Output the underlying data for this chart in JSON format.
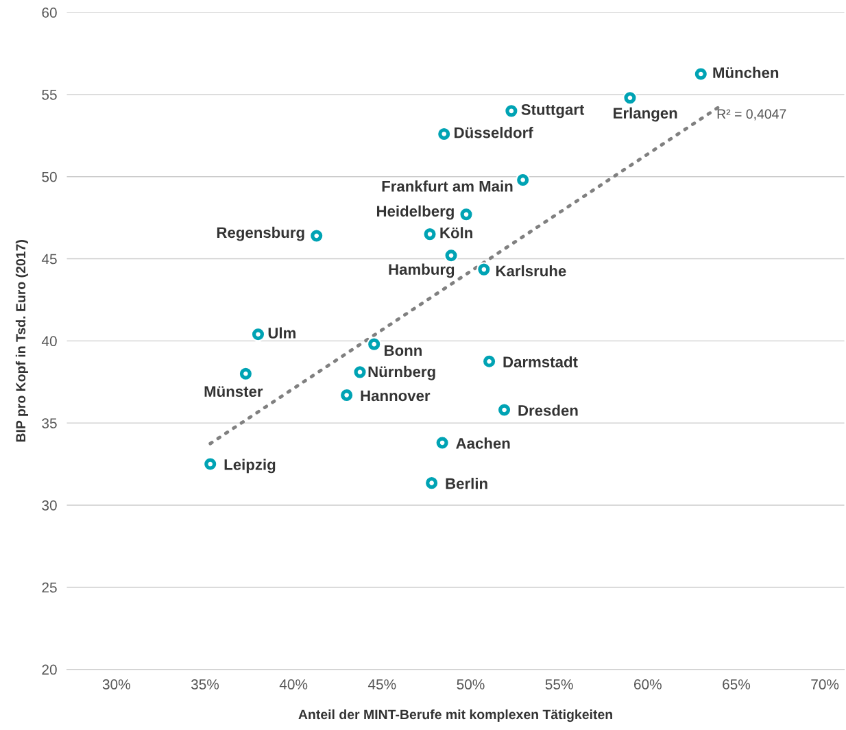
{
  "chart_data": {
    "type": "scatter",
    "xlabel": "Anteil der MINT-Berufe mit komplexen Tätigkeiten",
    "ylabel": "BIP pro Kopf in Tsd. Euro (2017)",
    "xlim": [
      27.2,
      71.1
    ],
    "xticks": [
      {
        "value": 30,
        "label": "30%"
      },
      {
        "value": 35,
        "label": "35%"
      },
      {
        "value": 40,
        "label": "40%"
      },
      {
        "value": 45,
        "label": "45%"
      },
      {
        "value": 50,
        "label": "50%"
      },
      {
        "value": 55,
        "label": "55%"
      },
      {
        "value": 60,
        "label": "60%"
      },
      {
        "value": 65,
        "label": "65%"
      },
      {
        "value": 70,
        "label": "70%"
      }
    ],
    "ylim": [
      20,
      60
    ],
    "yticks": [
      20,
      25,
      30,
      35,
      40,
      45,
      50,
      55,
      60
    ],
    "grid": "y",
    "series": [
      {
        "marker": "circle",
        "color": "#00a3b4",
        "x": [
          63.0,
          59.0,
          52.3,
          48.5,
          52.95,
          49.75,
          41.3,
          47.7,
          48.9,
          50.75,
          38.0,
          44.55,
          37.3,
          43.75,
          51.05,
          43.0,
          51.9,
          48.4,
          47.8,
          35.3
        ],
        "values": [
          56.25,
          54.8,
          54.0,
          52.6,
          49.8,
          47.7,
          46.4,
          46.5,
          45.2,
          44.35,
          40.4,
          39.8,
          38.0,
          38.1,
          38.75,
          36.7,
          35.8,
          33.8,
          31.35,
          32.5
        ]
      },
      {
        "type": "line",
        "marker": "none",
        "color": "#808080",
        "line_style": "dotted",
        "x": [
          35.3,
          64.1
        ],
        "values": [
          33.75,
          54.3
        ]
      }
    ],
    "annotations": [
      {
        "text": "München",
        "x": 63.0,
        "y": 56.25
      },
      {
        "text": "Erlangen",
        "x": 59.0,
        "y": 54.8
      },
      {
        "text": "Stuttgart",
        "x": 52.3,
        "y": 54.0
      },
      {
        "text": "Düsseldorf",
        "x": 48.5,
        "y": 52.6
      },
      {
        "text": "Frankfurt am Main",
        "x": 52.95,
        "y": 49.8
      },
      {
        "text": "Heidelberg",
        "x": 49.75,
        "y": 47.7
      },
      {
        "text": "Regensburg",
        "x": 41.3,
        "y": 46.4
      },
      {
        "text": "Köln",
        "x": 47.7,
        "y": 46.5
      },
      {
        "text": "Hamburg",
        "x": 48.9,
        "y": 45.2
      },
      {
        "text": "Karlsruhe",
        "x": 50.75,
        "y": 44.35
      },
      {
        "text": "Ulm",
        "x": 38.0,
        "y": 40.4
      },
      {
        "text": "Bonn",
        "x": 44.55,
        "y": 39.8
      },
      {
        "text": "Münster",
        "x": 37.3,
        "y": 38.0
      },
      {
        "text": "Nürnberg",
        "x": 43.75,
        "y": 38.1
      },
      {
        "text": "Darmstadt",
        "x": 51.05,
        "y": 38.75
      },
      {
        "text": "Hannover",
        "x": 43.0,
        "y": 36.7
      },
      {
        "text": "Dresden",
        "x": 51.9,
        "y": 35.8
      },
      {
        "text": "Aachen",
        "x": 48.4,
        "y": 33.8
      },
      {
        "text": "Berlin",
        "x": 47.8,
        "y": 31.35
      },
      {
        "text": "Leipzig",
        "x": 35.3,
        "y": 32.5
      },
      {
        "text": "R² = 0,4047",
        "x": 64.1,
        "y": 54.3
      }
    ]
  }
}
